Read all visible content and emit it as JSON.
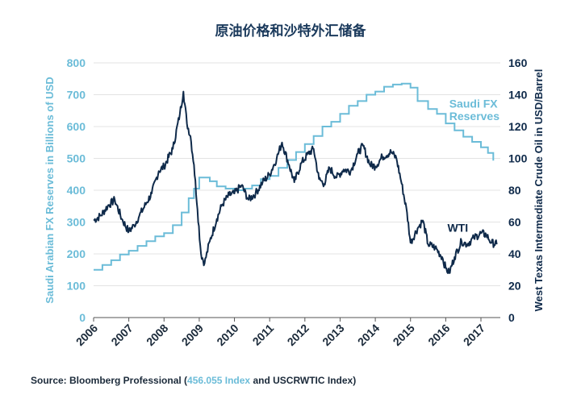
{
  "chart_data": {
    "type": "line",
    "title": "原油价格和沙特外汇储备",
    "ylabel_left": "Saudi Arabian FX Reserves in Billions of USD",
    "ylabel_right": "West Texas Intermediate Crude Oil in USD/Barrel",
    "xlabel": "",
    "x_ticks": [
      "2006",
      "2007",
      "2008",
      "2009",
      "2010",
      "2011",
      "2012",
      "2013",
      "2014",
      "2015",
      "2016",
      "2017"
    ],
    "y_left_ticks": [
      "0",
      "100",
      "200",
      "300",
      "400",
      "500",
      "600",
      "700",
      "800"
    ],
    "y_right_ticks": [
      "0",
      "20",
      "40",
      "60",
      "80",
      "100",
      "120",
      "140",
      "160"
    ],
    "ylim_left": [
      0,
      800
    ],
    "ylim_right": [
      0,
      160
    ],
    "xlim": [
      2006.0,
      2017.55
    ],
    "grid": "horizontal",
    "series": [
      {
        "name": "Saudi FX Reserves",
        "axis": "left",
        "color": "#6bbcd8",
        "points": [
          [
            2006.0,
            150
          ],
          [
            2006.25,
            165
          ],
          [
            2006.5,
            180
          ],
          [
            2006.75,
            198
          ],
          [
            2007.0,
            210
          ],
          [
            2007.25,
            225
          ],
          [
            2007.5,
            240
          ],
          [
            2007.75,
            255
          ],
          [
            2008.0,
            265
          ],
          [
            2008.25,
            290
          ],
          [
            2008.5,
            330
          ],
          [
            2008.7,
            375
          ],
          [
            2008.85,
            405
          ],
          [
            2009.0,
            440
          ],
          [
            2009.15,
            440
          ],
          [
            2009.3,
            428
          ],
          [
            2009.5,
            412
          ],
          [
            2009.75,
            405
          ],
          [
            2010.0,
            400
          ],
          [
            2010.25,
            405
          ],
          [
            2010.5,
            415
          ],
          [
            2010.75,
            435
          ],
          [
            2011.0,
            445
          ],
          [
            2011.25,
            470
          ],
          [
            2011.5,
            495
          ],
          [
            2011.75,
            520
          ],
          [
            2012.0,
            545
          ],
          [
            2012.25,
            570
          ],
          [
            2012.5,
            600
          ],
          [
            2012.75,
            615
          ],
          [
            2013.0,
            640
          ],
          [
            2013.25,
            665
          ],
          [
            2013.5,
            680
          ],
          [
            2013.75,
            700
          ],
          [
            2014.0,
            710
          ],
          [
            2014.25,
            725
          ],
          [
            2014.5,
            732
          ],
          [
            2014.75,
            735
          ],
          [
            2015.0,
            722
          ],
          [
            2015.2,
            680
          ],
          [
            2015.5,
            655
          ],
          [
            2015.75,
            640
          ],
          [
            2016.0,
            610
          ],
          [
            2016.25,
            588
          ],
          [
            2016.5,
            568
          ],
          [
            2016.75,
            552
          ],
          [
            2017.0,
            535
          ],
          [
            2017.2,
            517
          ],
          [
            2017.35,
            493
          ]
        ]
      },
      {
        "name": "WTI",
        "axis": "right",
        "color": "#0f2a4a",
        "points": [
          [
            2006.0,
            61
          ],
          [
            2006.2,
            64
          ],
          [
            2006.4,
            70
          ],
          [
            2006.6,
            74
          ],
          [
            2006.8,
            62
          ],
          [
            2007.0,
            54
          ],
          [
            2007.15,
            58
          ],
          [
            2007.3,
            64
          ],
          [
            2007.5,
            72
          ],
          [
            2007.65,
            78
          ],
          [
            2007.85,
            92
          ],
          [
            2008.0,
            95
          ],
          [
            2008.25,
            106
          ],
          [
            2008.45,
            128
          ],
          [
            2008.55,
            142
          ],
          [
            2008.65,
            122
          ],
          [
            2008.75,
            114
          ],
          [
            2008.85,
            96
          ],
          [
            2008.95,
            68
          ],
          [
            2009.05,
            40
          ],
          [
            2009.15,
            34
          ],
          [
            2009.3,
            48
          ],
          [
            2009.5,
            62
          ],
          [
            2009.65,
            71
          ],
          [
            2009.85,
            77
          ],
          [
            2010.0,
            78
          ],
          [
            2010.2,
            83
          ],
          [
            2010.4,
            74
          ],
          [
            2010.6,
            78
          ],
          [
            2010.8,
            85
          ],
          [
            2011.0,
            90
          ],
          [
            2011.2,
            100
          ],
          [
            2011.35,
            110
          ],
          [
            2011.55,
            96
          ],
          [
            2011.7,
            85
          ],
          [
            2011.9,
            97
          ],
          [
            2012.1,
            103
          ],
          [
            2012.25,
            106
          ],
          [
            2012.4,
            87
          ],
          [
            2012.55,
            84
          ],
          [
            2012.7,
            94
          ],
          [
            2012.9,
            88
          ],
          [
            2013.1,
            93
          ],
          [
            2013.3,
            92
          ],
          [
            2013.5,
            103
          ],
          [
            2013.65,
            108
          ],
          [
            2013.85,
            96
          ],
          [
            2014.0,
            95
          ],
          [
            2014.2,
            101
          ],
          [
            2014.45,
            104
          ],
          [
            2014.6,
            100
          ],
          [
            2014.75,
            84
          ],
          [
            2014.9,
            66
          ],
          [
            2015.0,
            47
          ],
          [
            2015.2,
            56
          ],
          [
            2015.35,
            61
          ],
          [
            2015.5,
            46
          ],
          [
            2015.7,
            44
          ],
          [
            2015.9,
            38
          ],
          [
            2016.0,
            31
          ],
          [
            2016.1,
            28
          ],
          [
            2016.25,
            38
          ],
          [
            2016.45,
            48
          ],
          [
            2016.6,
            46
          ],
          [
            2016.8,
            50
          ],
          [
            2017.0,
            53
          ],
          [
            2017.15,
            52
          ],
          [
            2017.3,
            47
          ],
          [
            2017.45,
            46
          ]
        ]
      }
    ],
    "annotations": [
      {
        "text": "Saudi  FX",
        "x": 2016.1,
        "y_axis": "left",
        "y": 660,
        "color": "#6bbcd8"
      },
      {
        "text": "Reserves",
        "x": 2016.1,
        "y_axis": "left",
        "y": 620,
        "color": "#6bbcd8"
      },
      {
        "text": "WTI",
        "x": 2016.05,
        "y_axis": "right",
        "y": 54,
        "color": "#0f2a4a"
      }
    ]
  },
  "source": {
    "prefix": "Source: Bloomberg Professional (",
    "highlight": "456.055 Index",
    "suffix": " and USCRWTIC Index)"
  },
  "colors": {
    "left_axis": "#6bbcd8",
    "right_axis": "#0f2a4a",
    "grid": "#e3e3e3",
    "axis": "#555555"
  }
}
